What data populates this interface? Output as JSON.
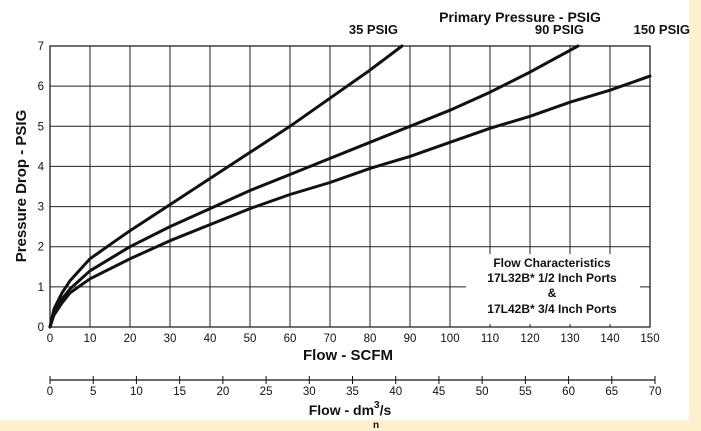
{
  "chart_data": [
    {
      "type": "line",
      "title": "Primary Pressure - PSIG",
      "xlabel": "Flow - SCFM",
      "ylabel": "Pressure Drop - PSIG",
      "xlim": [
        0,
        150
      ],
      "ylim": [
        0,
        7
      ],
      "xticks": [
        "0",
        "10",
        "20",
        "30",
        "40",
        "50",
        "60",
        "70",
        "80",
        "90",
        "100",
        "110",
        "120",
        "130",
        "140",
        "150"
      ],
      "yticks": [
        "0",
        "1",
        "2",
        "3",
        "4",
        "5",
        "6",
        "7"
      ],
      "grid": true,
      "legend": "none",
      "series": [
        {
          "name": "35 PSIG",
          "x": [
            0,
            1,
            3,
            5,
            10,
            15,
            20,
            30,
            40,
            50,
            60,
            70,
            80,
            88
          ],
          "y": [
            0,
            0.45,
            0.85,
            1.15,
            1.7,
            2.05,
            2.4,
            3.05,
            3.7,
            4.35,
            5.0,
            5.7,
            6.4,
            7.0
          ]
        },
        {
          "name": "90 PSIG",
          "x": [
            0,
            1,
            3,
            5,
            10,
            20,
            30,
            40,
            50,
            60,
            70,
            80,
            90,
            100,
            110,
            120,
            132
          ],
          "y": [
            0,
            0.35,
            0.7,
            0.95,
            1.4,
            2.0,
            2.5,
            2.95,
            3.4,
            3.8,
            4.2,
            4.6,
            5.0,
            5.4,
            5.85,
            6.35,
            7.0
          ]
        },
        {
          "name": "150 PSIG",
          "x": [
            0,
            1,
            3,
            5,
            10,
            20,
            30,
            40,
            50,
            60,
            70,
            80,
            90,
            100,
            110,
            120,
            130,
            140,
            150
          ],
          "y": [
            0,
            0.3,
            0.6,
            0.85,
            1.2,
            1.7,
            2.15,
            2.55,
            2.95,
            3.3,
            3.6,
            3.95,
            4.25,
            4.6,
            4.95,
            5.25,
            5.6,
            5.9,
            6.25
          ]
        }
      ],
      "annotation": [
        "Flow Characteristics",
        "17L32B* 1/2 Inch Ports",
        "&",
        "17L42B* 3/4 Inch Ports"
      ]
    },
    {
      "type": "axis",
      "xlabel": "Flow - dm",
      "xlabel_superscript": "3",
      "xlabel_suffix": "/s",
      "xlabel_subscript": "n",
      "xlim": [
        0,
        70
      ],
      "xticks": [
        "0",
        "5",
        "10",
        "15",
        "20",
        "25",
        "30",
        "35",
        "40",
        "45",
        "50",
        "55",
        "60",
        "65",
        "70"
      ]
    }
  ]
}
